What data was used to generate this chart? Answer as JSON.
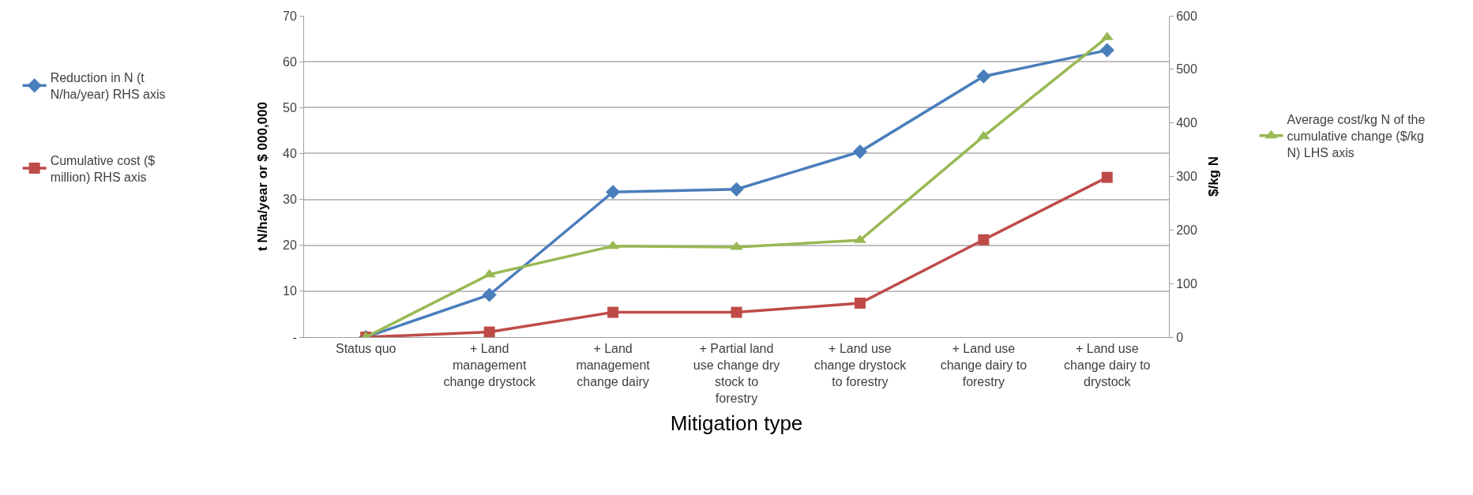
{
  "chart_data": {
    "type": "line",
    "xlabel": "Mitigation type",
    "ylabel": "t N/ha/year or $ 000,000",
    "y2label": "$/kg N",
    "categories": [
      "Status quo",
      "+ Land management change drystock",
      "+ Land management change dairy",
      "+ Partial land use change dry stock to forestry",
      "+ Land use change drystock to forestry",
      "+ Land use change dairy to forestry",
      "+ Land use change dairy to drystock"
    ],
    "series": [
      {
        "name": "Reduction in N (t N/ha/year) RHS axis",
        "color": "#4a7ebb",
        "marker": "diamond",
        "values": [
          0,
          9.2,
          31.6,
          32.2,
          40.4,
          56.8,
          62.5
        ]
      },
      {
        "name": "Cumulative cost ($ million) RHS axis",
        "color": "#be4b48",
        "marker": "square",
        "values": [
          0,
          1.1,
          5.4,
          5.4,
          7.4,
          21.2,
          34.8
        ]
      },
      {
        "name": "Average cost/kg N of the cumulative change ($/kg N) LHS axis",
        "color": "#98b954",
        "marker": "triangle",
        "axis": "y2",
        "values": [
          0,
          117,
          170,
          168,
          181,
          375,
          560
        ]
      }
    ],
    "ylim": [
      0,
      70
    ],
    "yticks": [
      {
        "value": 0,
        "label": "-"
      },
      10,
      20,
      30,
      40,
      50,
      60,
      70
    ],
    "y2lim": [
      0,
      600
    ],
    "y2ticks": [
      0,
      100,
      200,
      300,
      400,
      500,
      600
    ],
    "grid": "y",
    "legend": "left",
    "line_style": "solid"
  }
}
